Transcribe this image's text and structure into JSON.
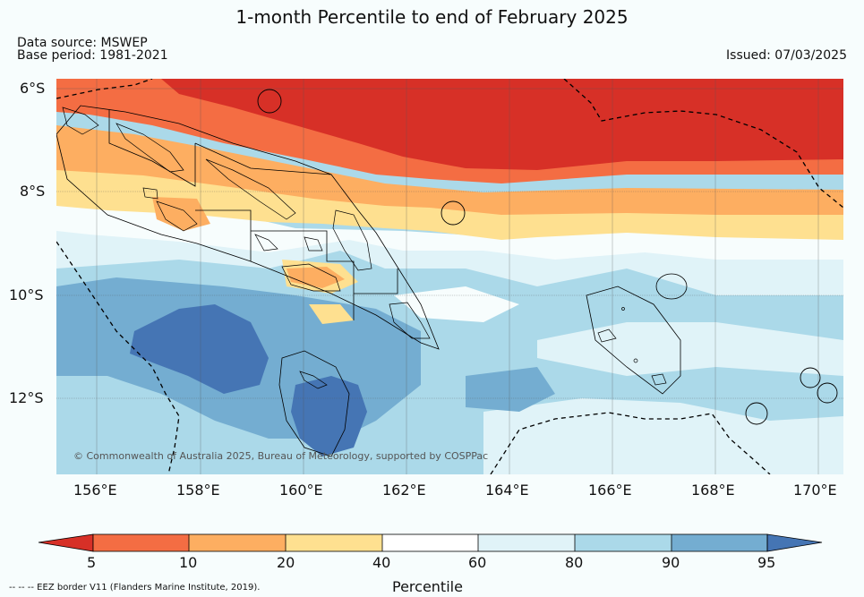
{
  "header": {
    "title": "1-month Percentile to end of February 2025",
    "data_source": "Data source: MSWEP",
    "base_period": "Base period: 1981-2021",
    "issued": "Issued: 07/03/2025"
  },
  "map": {
    "lat_labels": [
      "6°S",
      "8°S",
      "10°S",
      "12°S"
    ],
    "lon_labels": [
      "156°E",
      "158°E",
      "160°E",
      "162°E",
      "164°E",
      "166°E",
      "168°E",
      "170°E"
    ],
    "copyright": "© Commonwealth of Australia 2025, Bureau of Meteorology, supported by COSPPac"
  },
  "colorbar": {
    "ticks": [
      "5",
      "10",
      "20",
      "40",
      "60",
      "80",
      "90",
      "95"
    ],
    "label": "Percentile",
    "colors": [
      "#d73027",
      "#f46d43",
      "#fdae61",
      "#fee090",
      "#ffffff",
      "#e0f3f8",
      "#abd9e9",
      "#74add1",
      "#4575b4"
    ]
  },
  "footnote": "--  --  -- EEZ border V11 (Flanders Marine Institute, 2019)."
}
